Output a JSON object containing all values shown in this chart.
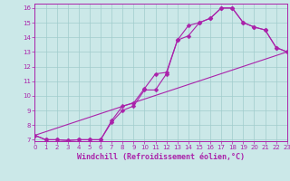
{
  "bg_color": "#cbe8e8",
  "line_color": "#aa22aa",
  "xlabel": "Windchill (Refroidissement éolien,°C)",
  "xlim": [
    0,
    23
  ],
  "ylim": [
    7,
    16
  ],
  "xticks": [
    0,
    1,
    2,
    3,
    4,
    5,
    6,
    7,
    8,
    9,
    10,
    11,
    12,
    13,
    14,
    15,
    16,
    17,
    18,
    19,
    20,
    21,
    22,
    23
  ],
  "yticks": [
    7,
    8,
    9,
    10,
    11,
    12,
    13,
    14,
    15,
    16
  ],
  "tick_fontsize": 5.0,
  "xlabel_fontsize": 6.0,
  "line1_x": [
    0,
    1,
    2,
    3,
    4,
    5,
    6,
    7,
    8,
    9,
    10,
    11,
    12,
    13,
    14,
    15,
    16,
    17,
    18,
    19,
    20,
    21,
    22,
    23
  ],
  "line1_y": [
    7.3,
    7.0,
    7.0,
    6.95,
    7.0,
    7.0,
    7.0,
    8.3,
    9.3,
    9.5,
    10.5,
    11.5,
    11.6,
    13.8,
    14.8,
    15.0,
    15.3,
    16.0,
    16.0,
    15.0,
    14.7,
    14.5,
    13.3,
    13.0
  ],
  "line2_x": [
    0,
    1,
    2,
    3,
    4,
    5,
    6,
    7,
    8,
    9,
    10,
    11,
    12,
    13,
    14,
    15,
    16,
    17,
    18,
    19,
    20,
    21,
    22,
    23
  ],
  "line2_y": [
    7.3,
    7.0,
    7.0,
    6.95,
    7.0,
    7.0,
    7.0,
    8.2,
    9.0,
    9.3,
    10.4,
    10.4,
    11.5,
    13.8,
    14.1,
    15.0,
    15.3,
    16.0,
    16.0,
    15.0,
    14.7,
    14.5,
    13.3,
    13.0
  ],
  "line3_x": [
    0,
    23
  ],
  "line3_y": [
    7.3,
    13.0
  ],
  "markersize": 2.5,
  "linewidth": 0.8,
  "grid_color": "#a0cccc",
  "spine_color": "#aa22aa"
}
